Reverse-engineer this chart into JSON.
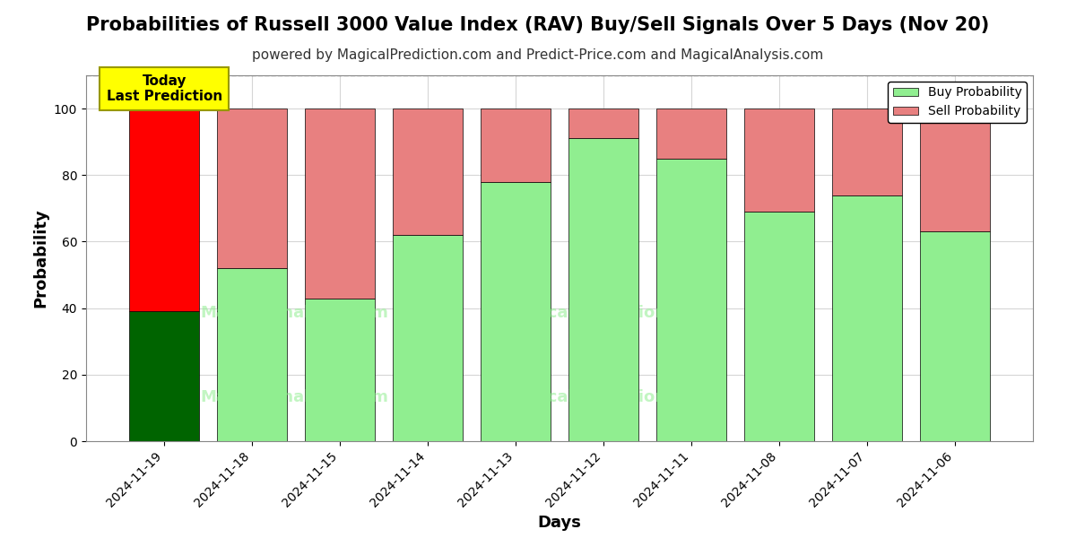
{
  "title": "Probabilities of Russell 3000 Value Index (RAV) Buy/Sell Signals Over 5 Days (Nov 20)",
  "subtitle": "powered by MagicalPrediction.com and Predict-Price.com and MagicalAnalysis.com",
  "xlabel": "Days",
  "ylabel": "Probability",
  "dates": [
    "2024-11-19",
    "2024-11-18",
    "2024-11-15",
    "2024-11-14",
    "2024-11-13",
    "2024-11-12",
    "2024-11-11",
    "2024-11-08",
    "2024-11-07",
    "2024-11-06"
  ],
  "buy_values": [
    39,
    52,
    43,
    62,
    78,
    91,
    85,
    69,
    74,
    63
  ],
  "sell_values": [
    61,
    48,
    57,
    38,
    22,
    9,
    15,
    31,
    26,
    37
  ],
  "today_buy_color": "#006400",
  "today_sell_color": "#FF0000",
  "buy_color": "#90EE90",
  "sell_color": "#E88080",
  "today_label_bg": "#FFFF00",
  "today_text": "Today\nLast Prediction",
  "legend_buy": "Buy Probability",
  "legend_sell": "Sell Probability",
  "ylim": [
    0,
    110
  ],
  "dashed_line_y": 110,
  "background_color": "#ffffff",
  "grid_color": "#cccccc",
  "title_fontsize": 15,
  "subtitle_fontsize": 11,
  "axis_label_fontsize": 13,
  "tick_fontsize": 10,
  "bar_edgecolor": "#000000",
  "bar_edgewidth": 0.5
}
